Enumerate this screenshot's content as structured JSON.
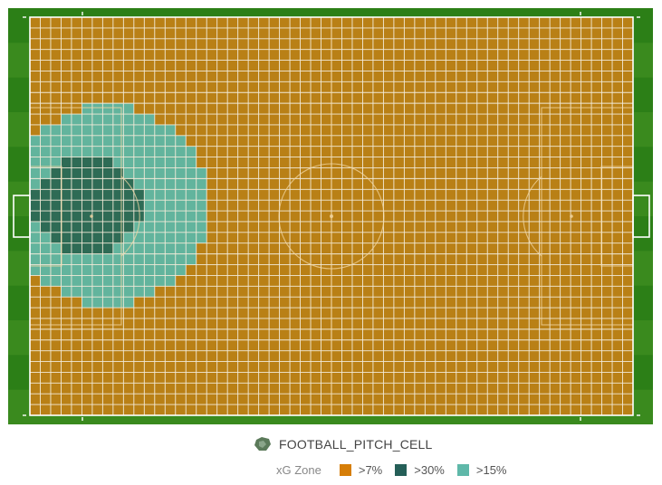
{
  "colors": {
    "grass_dark": "#2c7f17",
    "grass_light": "#3a8a1e",
    "pitch_fill": "#b98016",
    "grid_line": "#f2ead8",
    "marking": "#f4d8a4",
    "zone_7": "#d67e08",
    "zone_30": "#255f58",
    "zone_15": "#5fb8a9",
    "zone_30_cell": "#2e6b55",
    "zone_15_cell": "#62b49d"
  },
  "map": {
    "cols": 58,
    "rows": 37,
    "zones": {
      "high_center": [
        5.5,
        17.5
      ],
      "high_radius": [
        5.2,
        4.6
      ],
      "mid_center": [
        7.5,
        17.5
      ],
      "mid_radius": [
        9.8,
        9.2
      ]
    }
  },
  "legend": {
    "layer_icon": "shield-icon",
    "layer_name": "FOOTBALL_PITCH_CELL",
    "zone_title": "xG Zone",
    "items": [
      {
        "label": ">7%",
        "color": "#d67e08"
      },
      {
        "label": ">30%",
        "color": "#255f58"
      },
      {
        "label": ">15%",
        "color": "#5fb8a9"
      }
    ]
  }
}
